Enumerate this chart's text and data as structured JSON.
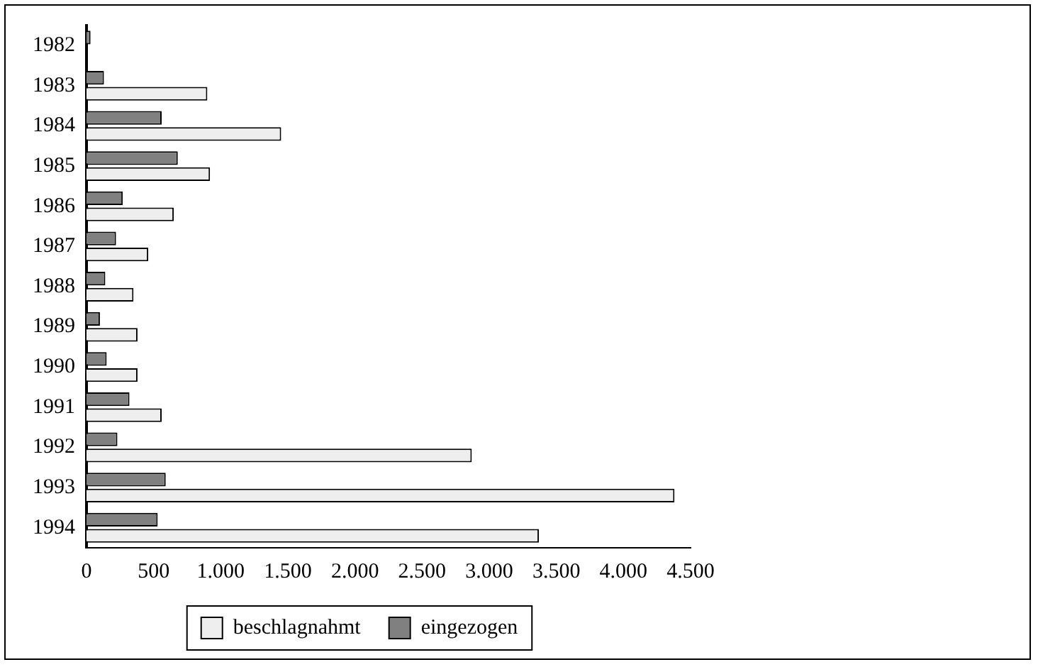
{
  "chart_data": {
    "type": "bar",
    "orientation": "horizontal",
    "categories": [
      "1982",
      "1983",
      "1984",
      "1985",
      "1986",
      "1987",
      "1988",
      "1989",
      "1990",
      "1991",
      "1992",
      "1993",
      "1994"
    ],
    "series": [
      {
        "name": "beschlagnahmt",
        "color": "#eeeeee",
        "values": [
          null,
          900,
          1450,
          920,
          650,
          460,
          350,
          380,
          380,
          560,
          2870,
          4380,
          3370
        ]
      },
      {
        "name": "eingezogen",
        "color": "#808080",
        "values": [
          30,
          130,
          560,
          680,
          270,
          220,
          140,
          100,
          150,
          320,
          230,
          590,
          530
        ]
      }
    ],
    "xlim": [
      0,
      4500
    ],
    "xticks": [
      0,
      500,
      {
        "value": 1000,
        "label": "1.000"
      },
      {
        "value": 1500,
        "label": "1.500"
      },
      {
        "value": 2000,
        "label": "2.000"
      },
      {
        "value": 2500,
        "label": "2.500"
      },
      {
        "value": 3000,
        "label": "3.000"
      },
      {
        "value": 3500,
        "label": "3.500"
      },
      {
        "value": 4000,
        "label": "4.000"
      },
      {
        "value": 4500,
        "label": "4.500"
      }
    ],
    "grid": false,
    "legend": "bottom"
  }
}
